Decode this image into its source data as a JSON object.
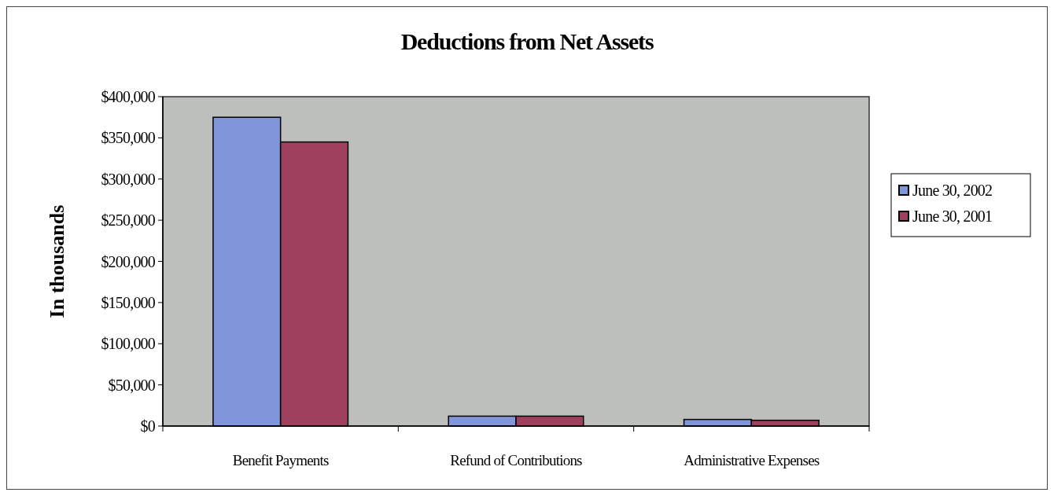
{
  "chart_data": {
    "type": "bar",
    "title": "Deductions from Net Assets",
    "ylabel": "In thousands",
    "categories": [
      "Benefit Payments",
      "Refund of Contributions",
      "Administrative Expenses"
    ],
    "series": [
      {
        "name": "June 30, 2002",
        "color": "#8096d8",
        "values": [
          375000,
          12000,
          8000
        ]
      },
      {
        "name": "June 30, 2001",
        "color": "#a0405f",
        "values": [
          345000,
          12000,
          7000
        ]
      }
    ],
    "ylim": [
      0,
      400000
    ],
    "yticks": [
      {
        "value": 0,
        "label": "$0"
      },
      {
        "value": 50000,
        "label": "$50,000"
      },
      {
        "value": 100000,
        "label": "$100,000"
      },
      {
        "value": 150000,
        "label": "$150,000"
      },
      {
        "value": 200000,
        "label": "$200,000"
      },
      {
        "value": 250000,
        "label": "$250,000"
      },
      {
        "value": 300000,
        "label": "$300,000"
      },
      {
        "value": 350000,
        "label": "$350,000"
      },
      {
        "value": 400000,
        "label": "$400,000"
      }
    ],
    "grid": false,
    "legend": "right"
  }
}
